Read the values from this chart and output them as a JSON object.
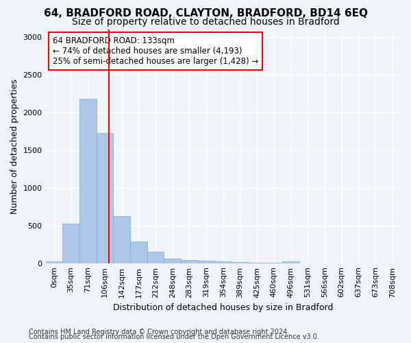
{
  "title1": "64, BRADFORD ROAD, CLAYTON, BRADFORD, BD14 6EQ",
  "title2": "Size of property relative to detached houses in Bradford",
  "xlabel": "Distribution of detached houses by size in Bradford",
  "ylabel": "Number of detached properties",
  "bin_labels": [
    "0sqm",
    "35sqm",
    "71sqm",
    "106sqm",
    "142sqm",
    "177sqm",
    "212sqm",
    "248sqm",
    "283sqm",
    "319sqm",
    "354sqm",
    "389sqm",
    "425sqm",
    "460sqm",
    "496sqm",
    "531sqm",
    "566sqm",
    "602sqm",
    "637sqm",
    "673sqm",
    "708sqm"
  ],
  "bar_values": [
    25,
    525,
    2175,
    1725,
    625,
    285,
    150,
    65,
    40,
    30,
    20,
    15,
    5,
    5,
    20,
    0,
    0,
    0,
    0,
    0,
    0
  ],
  "bar_color": "#aec6e8",
  "bar_edge_color": "#7aaed6",
  "property_sqm": 133,
  "annotation_text": "64 BRADFORD ROAD: 133sqm\n← 74% of detached houses are smaller (4,193)\n25% of semi-detached houses are larger (1,428) →",
  "annotation_box_color": "white",
  "annotation_box_edge_color": "red",
  "vline_color": "red",
  "footer1": "Contains HM Land Registry data © Crown copyright and database right 2024.",
  "footer2": "Contains public sector information licensed under the Open Government Licence v3.0.",
  "ylim": [
    0,
    3100
  ],
  "background_color": "#f0f4fa",
  "grid_color": "white",
  "title_fontsize": 11,
  "subtitle_fontsize": 10,
  "axis_label_fontsize": 9,
  "tick_fontsize": 8,
  "annotation_fontsize": 8.5,
  "footer_fontsize": 7
}
